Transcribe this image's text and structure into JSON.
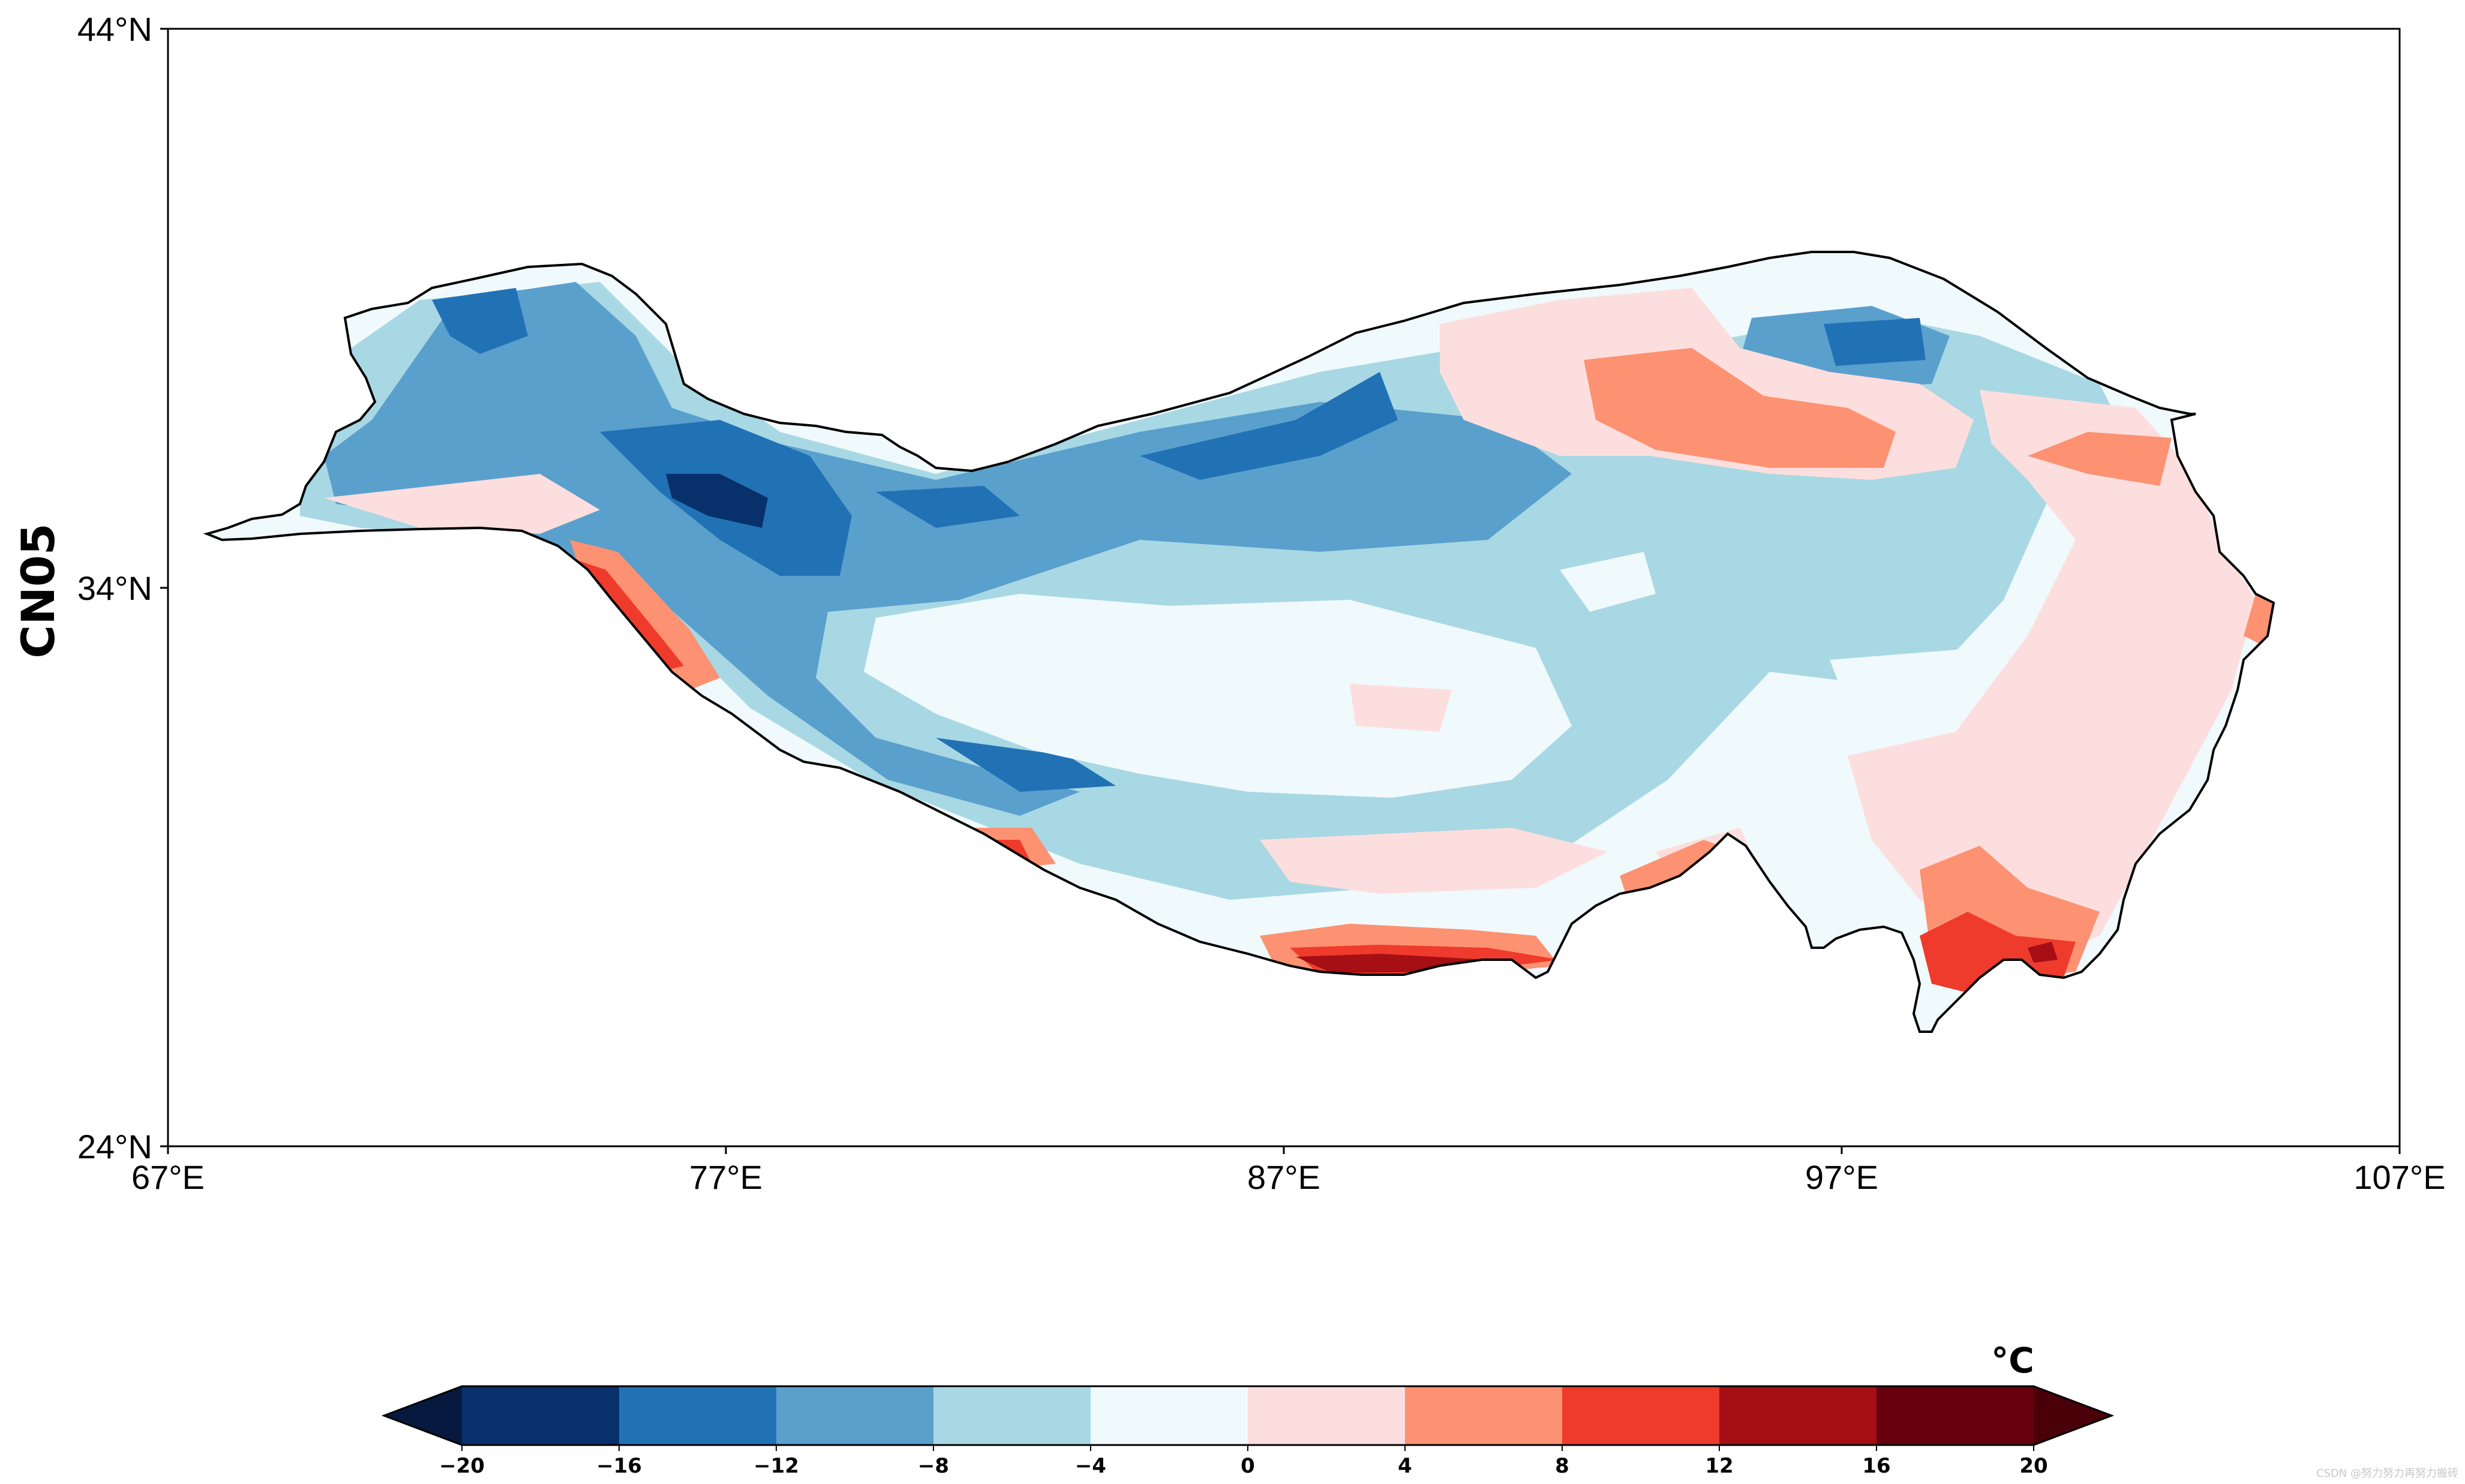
{
  "map": {
    "ylabel": "CN05",
    "lon_ticks": [
      "67°E",
      "77°E",
      "87°E",
      "97°E",
      "107°E"
    ],
    "lat_ticks": [
      "44°N",
      "34°N",
      "24°N"
    ],
    "extent": {
      "lon": [
        67,
        107
      ],
      "lat": [
        24,
        44
      ]
    },
    "region": "Tibetan Plateau"
  },
  "colorbar": {
    "unit": "°C",
    "tick_labels": [
      "−20",
      "−16",
      "−12",
      "−8",
      "−4",
      "0",
      "4",
      "8",
      "12",
      "16",
      "20"
    ],
    "colors": [
      "#08306b",
      "#2171b5",
      "#5aa0cd",
      "#a8d8e4",
      "#f0f9fb",
      "#fddede",
      "#fc9272",
      "#ef3b2c",
      "#a50f15",
      "#67000d"
    ],
    "under_color": "#08193f",
    "over_color": "#4a0008"
  },
  "watermark": "CSDN @努力努力再努力搬砖"
}
